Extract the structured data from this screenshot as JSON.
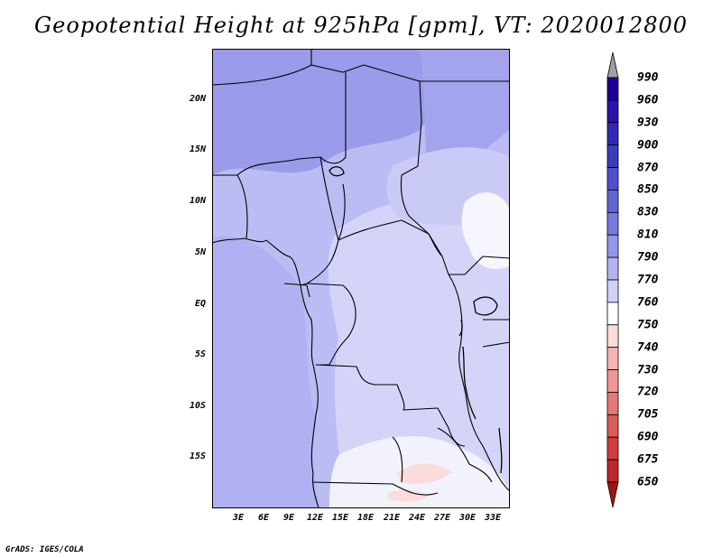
{
  "title": "Geopotential Height at 925hPa [gpm], VT: 2020012800",
  "credit": "GrADS: IGES/COLA",
  "map": {
    "lat_labels": [
      "20N",
      "15N",
      "10N",
      "5N",
      "EQ",
      "5S",
      "10S",
      "15S"
    ],
    "lon_labels": [
      "3E",
      "6E",
      "9E",
      "12E",
      "15E",
      "18E",
      "21E",
      "24E",
      "27E",
      "30E",
      "33E"
    ]
  },
  "legend": {
    "levels": [
      "990",
      "960",
      "930",
      "900",
      "870",
      "850",
      "830",
      "810",
      "790",
      "770",
      "760",
      "750",
      "740",
      "730",
      "720",
      "705",
      "690",
      "675",
      "650"
    ],
    "colors": [
      "#1e0096",
      "#2814a8",
      "#3228b4",
      "#3c3cc0",
      "#5050cc",
      "#6464d6",
      "#7878e0",
      "#9696ea",
      "#b4b4f2",
      "#d2d2f8",
      "#ffffff",
      "#fadcdc",
      "#f5b4b4",
      "#f09696",
      "#e67878",
      "#dc5a5a",
      "#d23c3c",
      "#be2828",
      "#a01414"
    ]
  }
}
